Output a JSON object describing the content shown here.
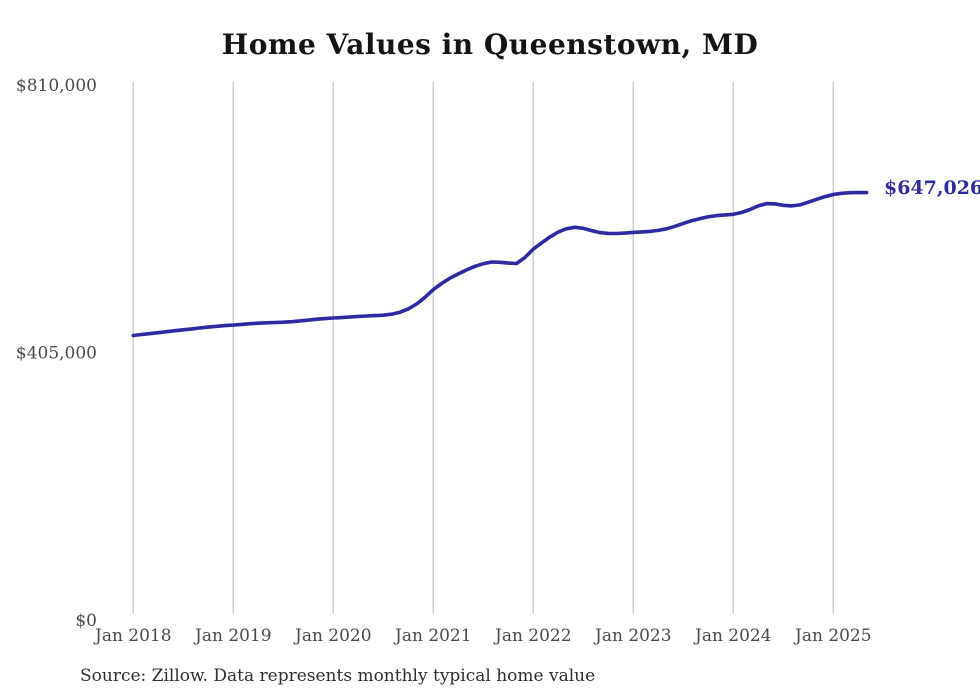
{
  "page": {
    "title": "Home Values in Queenstown, MD",
    "source_note": "Source: Zillow. Data represents monthly typical home value"
  },
  "colors": {
    "line": "#2e2aa2",
    "end_label": "#2e2aa2",
    "gridline": "#cbcbcb",
    "tick_text": "#4a4a4a",
    "title_text": "#141414",
    "background": "#ffffff"
  },
  "chart_data": {
    "type": "line",
    "title": "Home Values in Queenstown, MD",
    "series_name": "Typical home value",
    "x_unit": "month",
    "x_start": "2018-01",
    "x_end": "2025-05",
    "ylim": [
      0,
      810000
    ],
    "grid": "vertical-only",
    "legend": "none",
    "end_label": "$647,026",
    "end_value": 647026,
    "y_ticks": [
      {
        "label": "$0",
        "value": 0
      },
      {
        "label": "$405,000",
        "value": 405000
      },
      {
        "label": "$810,000",
        "value": 810000
      }
    ],
    "x_ticks": [
      {
        "label": "Jan 2018",
        "month_index": 0
      },
      {
        "label": "Jan 2019",
        "month_index": 12
      },
      {
        "label": "Jan 2020",
        "month_index": 24
      },
      {
        "label": "Jan 2021",
        "month_index": 36
      },
      {
        "label": "Jan 2022",
        "month_index": 48
      },
      {
        "label": "Jan 2023",
        "month_index": 60
      },
      {
        "label": "Jan 2024",
        "month_index": 72
      },
      {
        "label": "Jan 2025",
        "month_index": 84
      }
    ],
    "values": [
      430800,
      432200,
      433600,
      435000,
      436500,
      438000,
      439400,
      440800,
      442200,
      443500,
      444700,
      445700,
      446500,
      447600,
      448600,
      449400,
      450000,
      450400,
      450900,
      451700,
      452800,
      454100,
      455400,
      456400,
      457200,
      457900,
      458700,
      459600,
      460300,
      460800,
      461500,
      463000,
      466000,
      471000,
      478500,
      488500,
      500300,
      509500,
      517500,
      524000,
      530000,
      535500,
      539500,
      542000,
      541500,
      540400,
      539800,
      549000,
      561500,
      571000,
      580000,
      587500,
      592500,
      594500,
      593000,
      589500,
      586500,
      585300,
      585200,
      585800,
      586900,
      587600,
      588300,
      589800,
      592300,
      596000,
      600500,
      604500,
      607800,
      610400,
      612300,
      613400,
      614300,
      617000,
      621500,
      627000,
      630500,
      630000,
      627800,
      627000,
      628500,
      632500,
      637000,
      641000,
      644200,
      646000,
      647000,
      647200,
      647026
    ]
  }
}
